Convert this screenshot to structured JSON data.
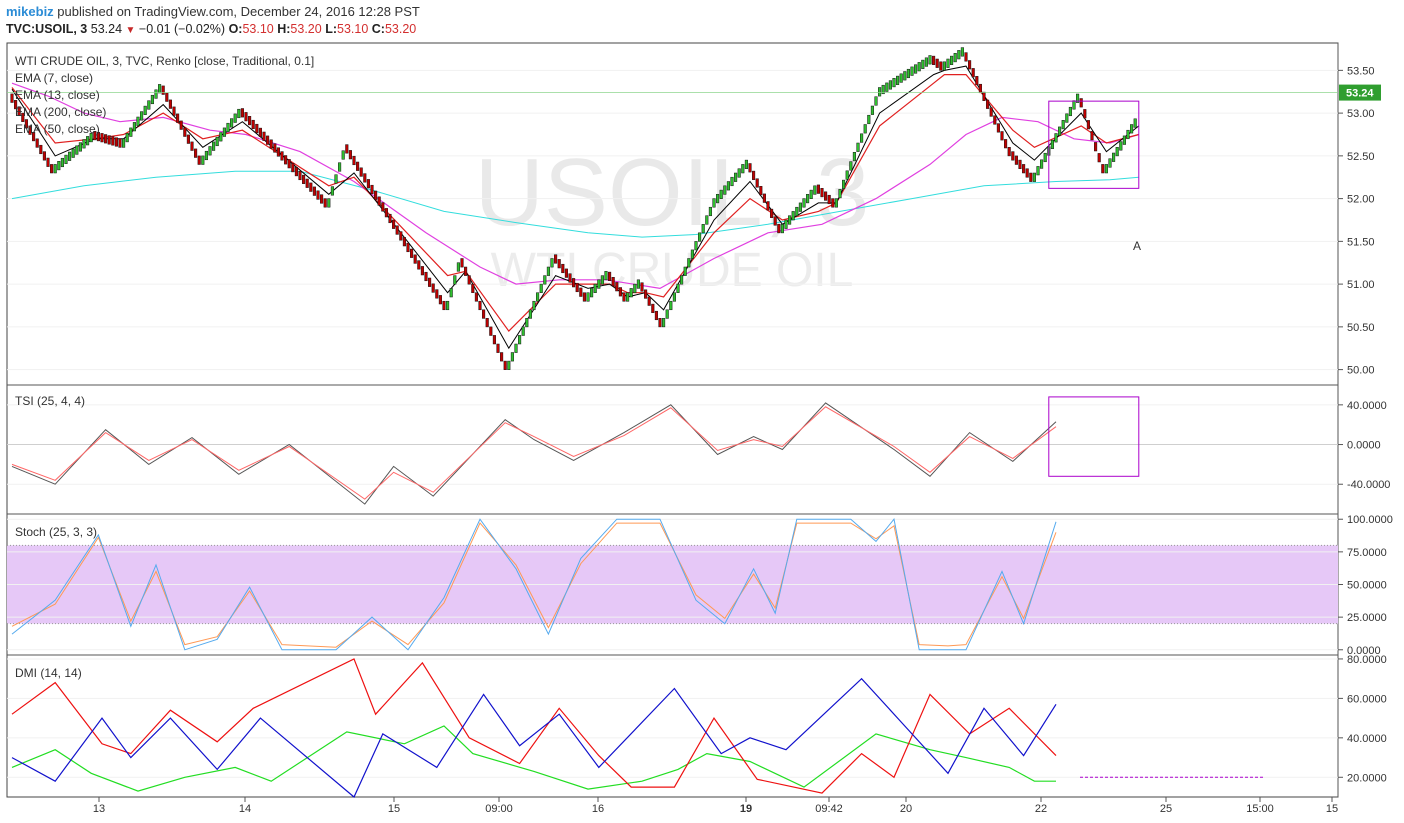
{
  "header": {
    "user": "mikebiz",
    "published": " published on TradingView.com, December 24, 2016 12:28 PST",
    "symbol": "TVC:USOIL, 3",
    "last": "53.24",
    "change": "−0.01 (−0.02%)",
    "o_label": "O:",
    "o": "53.10",
    "h_label": "H:",
    "h": "53.20",
    "l_label": "L:",
    "l": "53.10",
    "c_label": "C:",
    "c": "53.20"
  },
  "watermark": {
    "line1": "USOIL, 3",
    "line2": "WTI CRUDE OIL"
  },
  "annotation_label": "A",
  "colors": {
    "up": "#2fbf2f",
    "down": "#c00000",
    "ema7": "#000000",
    "ema13": "#e02020",
    "ema50": "#e040e0",
    "ema200": "#33dddd",
    "tsi": "#555555",
    "tsi_signal": "#ff6666",
    "stoch_k": "#55aaee",
    "stoch_d": "#ff9955",
    "dmi_plus": "#1111cc",
    "dmi_minus": "#ee1111",
    "adx": "#22dd22",
    "box": "#aa00cc"
  },
  "chart_data": [
    {
      "type": "renko",
      "title": "WTI CRUDE OIL, 3, TVC, Renko [close, Traditional, 0.1]",
      "legend": [
        "EMA (7, close)",
        "EMA (13, close)",
        "EMA (200, close)",
        "EMA (50, close)"
      ],
      "ylim": [
        49.82,
        53.82
      ],
      "yticks": [
        "53.50",
        "53.00",
        "52.50",
        "52.00",
        "51.50",
        "51.00",
        "50.50",
        "50.00"
      ],
      "last_price_label": "53.24",
      "xticks": [
        "13",
        "14",
        "15",
        "09:00",
        "16",
        "19",
        "09:42",
        "20",
        "22",
        "25",
        "15:00",
        "15"
      ],
      "brick_size": 0.1,
      "path": [
        [
          0,
          53.2
        ],
        [
          12,
          52.3
        ],
        [
          23,
          52.7
        ],
        [
          31,
          52.6
        ],
        [
          42,
          53.3
        ],
        [
          53,
          52.4
        ],
        [
          64,
          53.0
        ],
        [
          88,
          51.9
        ],
        [
          93,
          52.6
        ],
        [
          121,
          50.7
        ],
        [
          125,
          51.3
        ],
        [
          138,
          50.0
        ],
        [
          151,
          51.3
        ],
        [
          160,
          50.8
        ],
        [
          166,
          51.1
        ],
        [
          171,
          50.8
        ],
        [
          175,
          51.0
        ],
        [
          181,
          50.5
        ],
        [
          195,
          51.9
        ],
        [
          205,
          52.4
        ],
        [
          214,
          51.6
        ],
        [
          224,
          52.1
        ],
        [
          229,
          51.9
        ],
        [
          241,
          53.2
        ],
        [
          256,
          53.6
        ],
        [
          259,
          53.5
        ],
        [
          265,
          53.7
        ],
        [
          278,
          52.5
        ],
        [
          284,
          52.2
        ],
        [
          297,
          53.2
        ],
        [
          304,
          52.3
        ],
        [
          313,
          52.9
        ]
      ],
      "ema7": [
        [
          0,
          53.28
        ],
        [
          12,
          52.5
        ],
        [
          23,
          52.7
        ],
        [
          31,
          52.7
        ],
        [
          42,
          53.1
        ],
        [
          53,
          52.6
        ],
        [
          64,
          52.9
        ],
        [
          88,
          52.05
        ],
        [
          95,
          52.3
        ],
        [
          121,
          50.9
        ],
        [
          126,
          51.15
        ],
        [
          138,
          50.25
        ],
        [
          151,
          51.1
        ],
        [
          160,
          50.95
        ],
        [
          166,
          51.0
        ],
        [
          171,
          50.85
        ],
        [
          176,
          50.9
        ],
        [
          181,
          50.7
        ],
        [
          195,
          51.75
        ],
        [
          205,
          52.2
        ],
        [
          214,
          51.7
        ],
        [
          224,
          51.95
        ],
        [
          229,
          51.95
        ],
        [
          241,
          53.0
        ],
        [
          256,
          53.45
        ],
        [
          259,
          53.5
        ],
        [
          265,
          53.55
        ],
        [
          278,
          52.65
        ],
        [
          284,
          52.45
        ],
        [
          297,
          53.0
        ],
        [
          304,
          52.55
        ],
        [
          313,
          52.85
        ]
      ],
      "ema13": [
        [
          0,
          53.3
        ],
        [
          12,
          52.65
        ],
        [
          23,
          52.7
        ],
        [
          31,
          52.75
        ],
        [
          42,
          53.0
        ],
        [
          53,
          52.7
        ],
        [
          64,
          52.8
        ],
        [
          88,
          52.15
        ],
        [
          95,
          52.25
        ],
        [
          121,
          51.1
        ],
        [
          126,
          51.15
        ],
        [
          138,
          50.45
        ],
        [
          151,
          51.0
        ],
        [
          160,
          51.0
        ],
        [
          166,
          51.0
        ],
        [
          171,
          50.9
        ],
        [
          176,
          50.9
        ],
        [
          181,
          50.85
        ],
        [
          195,
          51.6
        ],
        [
          205,
          52.0
        ],
        [
          214,
          51.75
        ],
        [
          224,
          51.85
        ],
        [
          229,
          51.95
        ],
        [
          241,
          52.85
        ],
        [
          256,
          53.35
        ],
        [
          259,
          53.45
        ],
        [
          265,
          53.45
        ],
        [
          278,
          52.8
        ],
        [
          284,
          52.6
        ],
        [
          297,
          52.85
        ],
        [
          304,
          52.65
        ],
        [
          313,
          52.75
        ]
      ],
      "ema50": [
        [
          0,
          53.35
        ],
        [
          10,
          53.2
        ],
        [
          20,
          53.0
        ],
        [
          30,
          52.9
        ],
        [
          42,
          52.95
        ],
        [
          55,
          52.8
        ],
        [
          65,
          52.75
        ],
        [
          80,
          52.55
        ],
        [
          95,
          52.2
        ],
        [
          115,
          51.6
        ],
        [
          130,
          51.2
        ],
        [
          140,
          51.0
        ],
        [
          152,
          51.05
        ],
        [
          165,
          51.05
        ],
        [
          180,
          50.95
        ],
        [
          195,
          51.3
        ],
        [
          210,
          51.6
        ],
        [
          225,
          51.7
        ],
        [
          240,
          52.0
        ],
        [
          255,
          52.4
        ],
        [
          265,
          52.75
        ],
        [
          275,
          52.95
        ],
        [
          285,
          52.9
        ],
        [
          295,
          52.7
        ],
        [
          305,
          52.65
        ],
        [
          313,
          52.75
        ]
      ],
      "ema200": [
        [
          0,
          52.0
        ],
        [
          20,
          52.15
        ],
        [
          40,
          52.25
        ],
        [
          62,
          52.32
        ],
        [
          80,
          52.32
        ],
        [
          100,
          52.1
        ],
        [
          120,
          51.85
        ],
        [
          140,
          51.72
        ],
        [
          160,
          51.6
        ],
        [
          175,
          51.55
        ],
        [
          190,
          51.58
        ],
        [
          210,
          51.7
        ],
        [
          230,
          51.85
        ],
        [
          250,
          52.0
        ],
        [
          270,
          52.15
        ],
        [
          290,
          52.2
        ],
        [
          305,
          52.22
        ],
        [
          313,
          52.25
        ]
      ],
      "box": {
        "x": [
          288,
          313
        ],
        "y": [
          52.12,
          53.14
        ]
      }
    },
    {
      "type": "line",
      "title": "TSI (25, 4, 4)",
      "ylim": [
        -70,
        60
      ],
      "yticks": [
        "40.0000",
        "0.0000",
        "-40.0000"
      ],
      "tsi": [
        [
          0,
          -22
        ],
        [
          12,
          -40
        ],
        [
          26,
          15
        ],
        [
          38,
          -20
        ],
        [
          50,
          7
        ],
        [
          63,
          -30
        ],
        [
          77,
          0
        ],
        [
          98,
          -60
        ],
        [
          106,
          -22
        ],
        [
          117,
          -52
        ],
        [
          137,
          25
        ],
        [
          145,
          5
        ],
        [
          156,
          -16
        ],
        [
          170,
          12
        ],
        [
          183,
          40
        ],
        [
          196,
          -10
        ],
        [
          206,
          8
        ],
        [
          214,
          -5
        ],
        [
          226,
          42
        ],
        [
          245,
          -5
        ],
        [
          255,
          -32
        ],
        [
          266,
          12
        ],
        [
          278,
          -17
        ],
        [
          290,
          23
        ]
      ],
      "signal": [
        [
          0,
          -20
        ],
        [
          12,
          -36
        ],
        [
          26,
          12
        ],
        [
          38,
          -16
        ],
        [
          50,
          5
        ],
        [
          63,
          -26
        ],
        [
          77,
          -2
        ],
        [
          98,
          -55
        ],
        [
          106,
          -28
        ],
        [
          117,
          -48
        ],
        [
          137,
          22
        ],
        [
          145,
          8
        ],
        [
          156,
          -12
        ],
        [
          170,
          9
        ],
        [
          183,
          37
        ],
        [
          196,
          -6
        ],
        [
          206,
          5
        ],
        [
          214,
          -2
        ],
        [
          226,
          38
        ],
        [
          245,
          -2
        ],
        [
          255,
          -28
        ],
        [
          266,
          8
        ],
        [
          278,
          -14
        ],
        [
          290,
          18
        ]
      ],
      "box": {
        "x": [
          288,
          313
        ],
        "y": [
          -32,
          48
        ]
      }
    },
    {
      "type": "line",
      "title": "Stoch (25, 3, 3)",
      "ylim": [
        -4,
        104
      ],
      "yticks": [
        "100.0000",
        "75.0000",
        "50.0000",
        "25.0000",
        "0.0000"
      ],
      "band": [
        20,
        80
      ],
      "k": [
        [
          0,
          12
        ],
        [
          12,
          38
        ],
        [
          24,
          88
        ],
        [
          33,
          18
        ],
        [
          40,
          65
        ],
        [
          48,
          0
        ],
        [
          57,
          8
        ],
        [
          66,
          48
        ],
        [
          75,
          0
        ],
        [
          90,
          0
        ],
        [
          100,
          25
        ],
        [
          110,
          0
        ],
        [
          120,
          40
        ],
        [
          130,
          100
        ],
        [
          140,
          62
        ],
        [
          149,
          12
        ],
        [
          158,
          70
        ],
        [
          168,
          100
        ],
        [
          180,
          100
        ],
        [
          190,
          38
        ],
        [
          198,
          20
        ],
        [
          206,
          62
        ],
        [
          212,
          28
        ],
        [
          218,
          100
        ],
        [
          233,
          100
        ],
        [
          240,
          83
        ],
        [
          245,
          100
        ],
        [
          252,
          0
        ],
        [
          260,
          0
        ],
        [
          265,
          0
        ],
        [
          275,
          60
        ],
        [
          281,
          20
        ],
        [
          290,
          98
        ]
      ],
      "d": [
        [
          0,
          18
        ],
        [
          12,
          35
        ],
        [
          24,
          86
        ],
        [
          33,
          22
        ],
        [
          40,
          60
        ],
        [
          48,
          4
        ],
        [
          57,
          10
        ],
        [
          66,
          45
        ],
        [
          75,
          4
        ],
        [
          90,
          2
        ],
        [
          100,
          22
        ],
        [
          110,
          4
        ],
        [
          120,
          36
        ],
        [
          130,
          97
        ],
        [
          140,
          65
        ],
        [
          149,
          17
        ],
        [
          158,
          66
        ],
        [
          168,
          97
        ],
        [
          180,
          97
        ],
        [
          190,
          42
        ],
        [
          198,
          24
        ],
        [
          206,
          58
        ],
        [
          212,
          32
        ],
        [
          218,
          97
        ],
        [
          233,
          97
        ],
        [
          240,
          85
        ],
        [
          245,
          95
        ],
        [
          252,
          4
        ],
        [
          260,
          3
        ],
        [
          265,
          4
        ],
        [
          275,
          56
        ],
        [
          281,
          24
        ],
        [
          290,
          90
        ]
      ]
    },
    {
      "type": "line",
      "title": "DMI (14, 14)",
      "ylim": [
        10,
        82
      ],
      "yticks": [
        "80.0000",
        "60.0000",
        "40.0000",
        "20.0000"
      ],
      "di_plus": [
        [
          0,
          30
        ],
        [
          12,
          18
        ],
        [
          25,
          50
        ],
        [
          33,
          30
        ],
        [
          44,
          50
        ],
        [
          57,
          24
        ],
        [
          69,
          50
        ],
        [
          95,
          10
        ],
        [
          103,
          42
        ],
        [
          118,
          25
        ],
        [
          131,
          62
        ],
        [
          141,
          36
        ],
        [
          152,
          52
        ],
        [
          163,
          25
        ],
        [
          184,
          65
        ],
        [
          197,
          32
        ],
        [
          205,
          40
        ],
        [
          215,
          34
        ],
        [
          236,
          70
        ],
        [
          246,
          50
        ],
        [
          260,
          22
        ],
        [
          270,
          55
        ],
        [
          281,
          31
        ],
        [
          290,
          57
        ]
      ],
      "di_minus": [
        [
          0,
          52
        ],
        [
          12,
          68
        ],
        [
          25,
          37
        ],
        [
          33,
          32
        ],
        [
          44,
          54
        ],
        [
          57,
          38
        ],
        [
          67,
          55
        ],
        [
          95,
          80
        ],
        [
          101,
          52
        ],
        [
          114,
          78
        ],
        [
          127,
          40
        ],
        [
          141,
          27
        ],
        [
          152,
          55
        ],
        [
          163,
          31
        ],
        [
          172,
          15
        ],
        [
          184,
          15
        ],
        [
          195,
          50
        ],
        [
          207,
          19
        ],
        [
          225,
          12
        ],
        [
          236,
          32
        ],
        [
          245,
          20
        ],
        [
          255,
          62
        ],
        [
          266,
          42
        ],
        [
          277,
          55
        ],
        [
          290,
          31
        ]
      ],
      "adx": [
        [
          0,
          25
        ],
        [
          12,
          34
        ],
        [
          22,
          22
        ],
        [
          35,
          13
        ],
        [
          48,
          20
        ],
        [
          62,
          25
        ],
        [
          72,
          18
        ],
        [
          93,
          43
        ],
        [
          109,
          37
        ],
        [
          120,
          46
        ],
        [
          128,
          32
        ],
        [
          145,
          23
        ],
        [
          160,
          14
        ],
        [
          175,
          18
        ],
        [
          185,
          24
        ],
        [
          193,
          32
        ],
        [
          205,
          28
        ],
        [
          220,
          15
        ],
        [
          240,
          42
        ],
        [
          255,
          34
        ],
        [
          265,
          30
        ],
        [
          277,
          25
        ],
        [
          284,
          18
        ],
        [
          290,
          18
        ]
      ],
      "dashed_level": 20
    }
  ]
}
